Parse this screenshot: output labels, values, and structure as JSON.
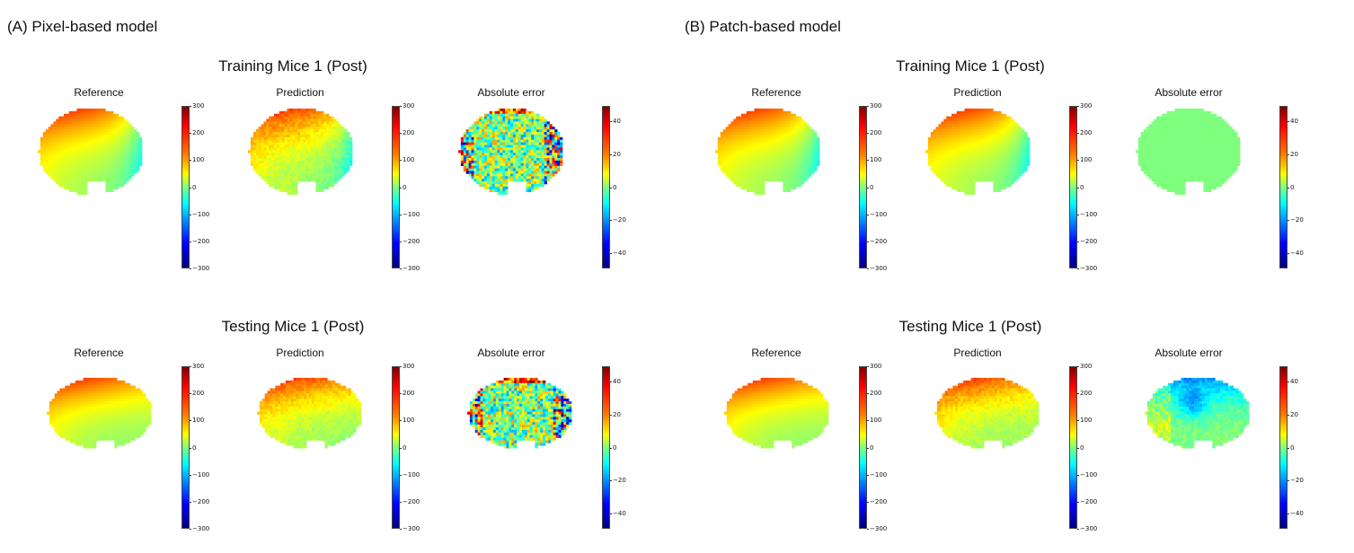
{
  "panels": [
    {
      "label": "(A) Pixel-based model",
      "rows": [
        {
          "title": "Training Mice 1 (Post)",
          "images": [
            {
              "title": "Reference",
              "scale": "signed",
              "noise": "none"
            },
            {
              "title": "Prediction",
              "scale": "signed",
              "noise": "low"
            },
            {
              "title": "Absolute error",
              "scale": "error",
              "noise": "high"
            }
          ]
        },
        {
          "title": "Testing Mice 1 (Post)",
          "images": [
            {
              "title": "Reference",
              "scale": "signed",
              "noise": "none"
            },
            {
              "title": "Prediction",
              "scale": "signed",
              "noise": "low"
            },
            {
              "title": "Absolute error",
              "scale": "error",
              "noise": "high"
            }
          ]
        }
      ]
    },
    {
      "label": "(B) Patch-based model",
      "rows": [
        {
          "title": "Training Mice 1 (Post)",
          "images": [
            {
              "title": "Reference",
              "scale": "signed",
              "noise": "none"
            },
            {
              "title": "Prediction",
              "scale": "signed",
              "noise": "none"
            },
            {
              "title": "Absolute error",
              "scale": "error",
              "noise": "flat"
            }
          ]
        },
        {
          "title": "Testing Mice 1 (Post)",
          "images": [
            {
              "title": "Reference",
              "scale": "signed",
              "noise": "none"
            },
            {
              "title": "Prediction",
              "scale": "signed",
              "noise": "low"
            },
            {
              "title": "Absolute error",
              "scale": "error",
              "noise": "patch"
            }
          ]
        }
      ]
    }
  ],
  "colorbars": {
    "signed": [
      "300",
      "200",
      "100",
      "0",
      "−100",
      "−200",
      "−300"
    ],
    "error": [
      "40",
      "20",
      "0",
      "−20",
      "−40"
    ]
  },
  "colormap": [
    "#00007f",
    "#0000ff",
    "#0080ff",
    "#00ffff",
    "#7fff7f",
    "#ffff00",
    "#ff7f00",
    "#ff0000",
    "#7f0000"
  ]
}
